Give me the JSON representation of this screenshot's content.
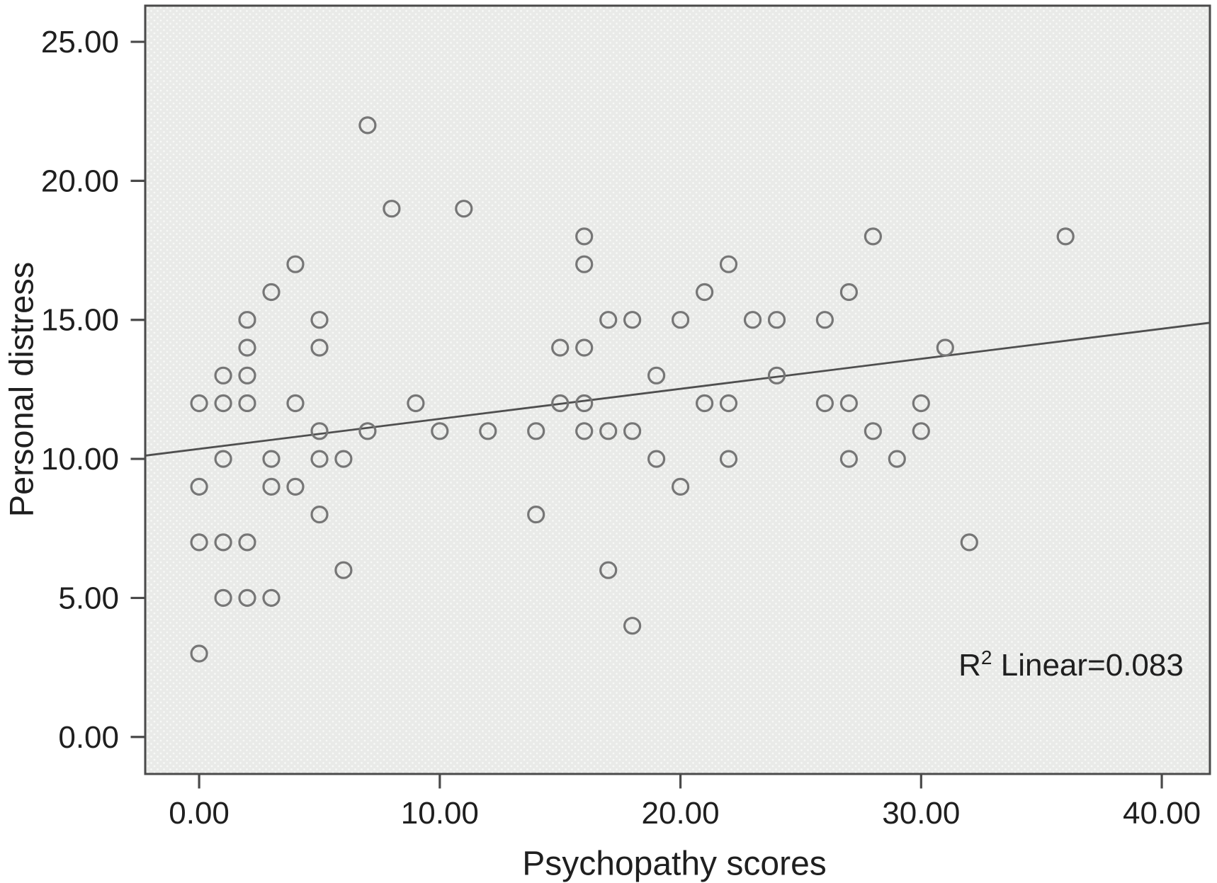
{
  "chart_data": {
    "type": "scatter",
    "title": "",
    "xlabel": "Psychopathy scores",
    "ylabel": "Personal distress",
    "annotation": {
      "base": "R",
      "sup": "2",
      "rest": " Linear=0.083"
    },
    "r_squared": 0.083,
    "legend": "none",
    "grid": false,
    "x_ticks": {
      "values": [
        0,
        10,
        20,
        30,
        40
      ],
      "labels": [
        "0.00",
        "10.00",
        "20.00",
        "30.00",
        "40.00"
      ]
    },
    "y_ticks": {
      "values": [
        0,
        5,
        10,
        15,
        20,
        25
      ],
      "labels": [
        "0.00",
        "5.00",
        "10.00",
        "15.00",
        "20.00",
        "25.00"
      ]
    },
    "x_range": [
      -2.24,
      42.0
    ],
    "y_range": [
      -1.33,
      26.3
    ],
    "marker": {
      "shape": "open-circle",
      "radius": 11,
      "stroke": "#767676",
      "stroke_width": 3.2
    },
    "trendline": {
      "slope": 0.108,
      "intercept": 10.36,
      "color": "#4f4f4f",
      "width": 2.8
    },
    "colors": {
      "plot_bg": "#e9eae8",
      "plot_bg_dot": "#f7f8f6",
      "border": "#4a4a4a",
      "tick": "#4a4a4a",
      "text": "#1f1f1f",
      "outside_bg": "#ffffff"
    },
    "points": [
      [
        7,
        22
      ],
      [
        8,
        19
      ],
      [
        11,
        19
      ],
      [
        16,
        18
      ],
      [
        28,
        18
      ],
      [
        36,
        18
      ],
      [
        4,
        17
      ],
      [
        16,
        17
      ],
      [
        22,
        17
      ],
      [
        3,
        16
      ],
      [
        21,
        16
      ],
      [
        27,
        16
      ],
      [
        2,
        15
      ],
      [
        5,
        15
      ],
      [
        17,
        15
      ],
      [
        18,
        15
      ],
      [
        20,
        15
      ],
      [
        23,
        15
      ],
      [
        24,
        15
      ],
      [
        26,
        15
      ],
      [
        2,
        14
      ],
      [
        5,
        14
      ],
      [
        15,
        14
      ],
      [
        16,
        14
      ],
      [
        31,
        14
      ],
      [
        1,
        13
      ],
      [
        2,
        13
      ],
      [
        19,
        13
      ],
      [
        24,
        13
      ],
      [
        0,
        12
      ],
      [
        1,
        12
      ],
      [
        2,
        12
      ],
      [
        4,
        12
      ],
      [
        9,
        12
      ],
      [
        15,
        12
      ],
      [
        16,
        12
      ],
      [
        21,
        12
      ],
      [
        22,
        12
      ],
      [
        26,
        12
      ],
      [
        27,
        12
      ],
      [
        30,
        12
      ],
      [
        5,
        11
      ],
      [
        7,
        11
      ],
      [
        10,
        11
      ],
      [
        12,
        11
      ],
      [
        14,
        11
      ],
      [
        16,
        11
      ],
      [
        17,
        11
      ],
      [
        18,
        11
      ],
      [
        28,
        11
      ],
      [
        30,
        11
      ],
      [
        1,
        10
      ],
      [
        3,
        10
      ],
      [
        5,
        10
      ],
      [
        6,
        10
      ],
      [
        19,
        10
      ],
      [
        22,
        10
      ],
      [
        27,
        10
      ],
      [
        29,
        10
      ],
      [
        0,
        9
      ],
      [
        3,
        9
      ],
      [
        4,
        9
      ],
      [
        20,
        9
      ],
      [
        5,
        8
      ],
      [
        14,
        8
      ],
      [
        0,
        7
      ],
      [
        1,
        7
      ],
      [
        2,
        7
      ],
      [
        32,
        7
      ],
      [
        6,
        6
      ],
      [
        17,
        6
      ],
      [
        1,
        5
      ],
      [
        2,
        5
      ],
      [
        3,
        5
      ],
      [
        18,
        4
      ],
      [
        0,
        3
      ]
    ]
  }
}
